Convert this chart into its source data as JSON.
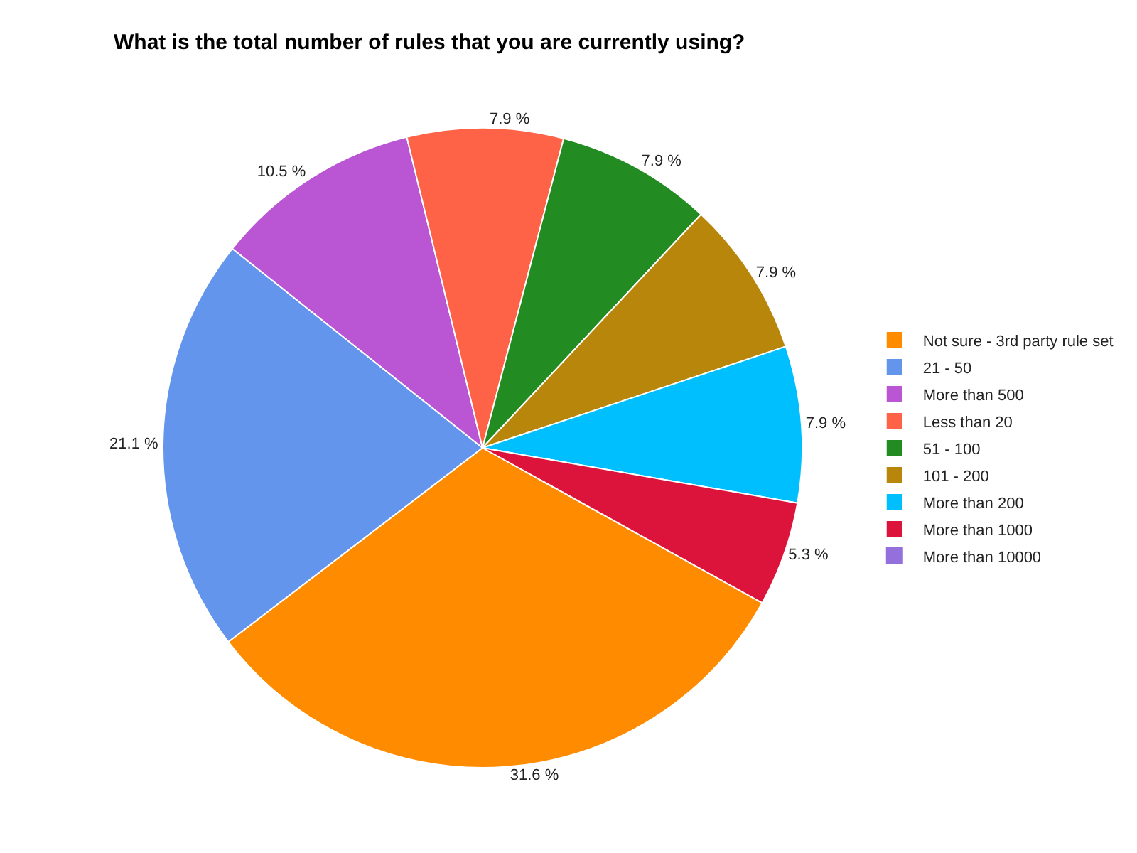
{
  "chart_data": {
    "type": "pie",
    "title": "What is the total number of rules that you are currently using?",
    "categories": [
      "Not sure - 3rd party rule set",
      "21 - 50",
      "More than 500",
      "Less than 20",
      "51 - 100",
      "101 - 200",
      "More than 200",
      "More than 1000",
      "More than 10000"
    ],
    "values": [
      31.6,
      21.1,
      10.5,
      7.9,
      7.9,
      7.9,
      7.9,
      5.3,
      0
    ],
    "value_labels": [
      "31.6 %",
      "21.1 %",
      "10.5 %",
      "7.9 %",
      "7.9 %",
      "7.9 %",
      "7.9 %",
      "5.3 %",
      null
    ],
    "colors": [
      "#ff8c00",
      "#6495ed",
      "#ba55d3",
      "#ff6347",
      "#228b22",
      "#b8860b",
      "#00bfff",
      "#dc143c",
      "#9370db"
    ],
    "legend": "right"
  }
}
